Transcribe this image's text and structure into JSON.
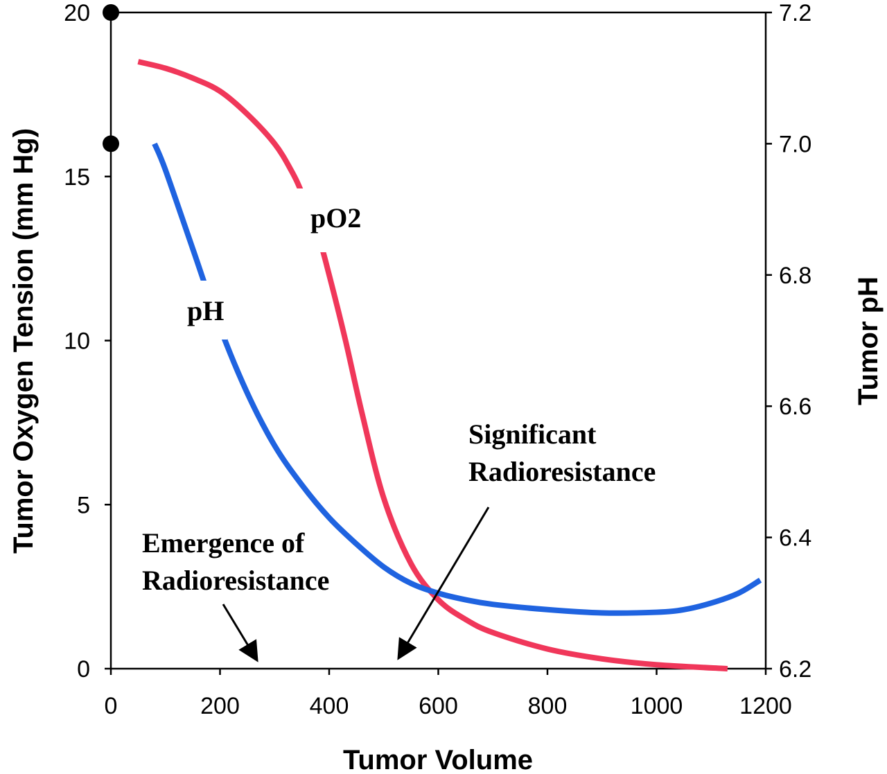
{
  "chart_data": {
    "type": "line",
    "x_axis": {
      "label": "Tumor Volume",
      "range": [
        0,
        1200
      ],
      "ticks": [
        0,
        200,
        400,
        600,
        800,
        1000,
        1200
      ]
    },
    "y_axis_left": {
      "label": "Tumor Oxygen Tension (mm Hg)",
      "range": [
        0,
        20
      ],
      "ticks": [
        0,
        5,
        10,
        15,
        20
      ]
    },
    "y_axis_right": {
      "label": "Tumor pH",
      "range": [
        6.2,
        7.2
      ],
      "ticks": [
        "6.2",
        "6.4",
        "6.6",
        "6.8",
        "7.0",
        "7.2"
      ]
    },
    "grid": false,
    "series": [
      {
        "name": "pO2",
        "axis": "left",
        "color": "#f0375a",
        "x": [
          50,
          100,
          150,
          200,
          250,
          300,
          330,
          350,
          380,
          400,
          430,
          460,
          500,
          550,
          600,
          650,
          700,
          800,
          900,
          1000,
          1130
        ],
        "y": [
          18.5,
          18.3,
          18.0,
          17.6,
          16.9,
          16.0,
          15.2,
          14.5,
          13.2,
          12.0,
          10.0,
          7.8,
          5.2,
          3.2,
          2.1,
          1.5,
          1.1,
          0.6,
          0.3,
          0.12,
          0.0
        ]
      },
      {
        "name": "pH",
        "axis": "right",
        "color": "#1f63e0",
        "x": [
          80,
          100,
          150,
          200,
          250,
          300,
          350,
          400,
          450,
          500,
          550,
          600,
          650,
          700,
          800,
          900,
          1000,
          1050,
          1100,
          1150,
          1190
        ],
        "y": [
          7.0,
          6.96,
          6.84,
          6.72,
          6.62,
          6.54,
          6.48,
          6.43,
          6.39,
          6.355,
          6.33,
          6.315,
          6.305,
          6.298,
          6.29,
          6.285,
          6.286,
          6.29,
          6.3,
          6.315,
          6.335
        ]
      }
    ],
    "markers_left_axis": [
      20,
      16
    ],
    "annotations": [
      {
        "id": "emergence",
        "lines": [
          "Emergence of",
          "Radioresistance"
        ],
        "arrow_to_x": 270
      },
      {
        "id": "significant",
        "lines": [
          "Significant",
          "Radioresistance"
        ],
        "arrow_to_x": 520
      }
    ]
  }
}
